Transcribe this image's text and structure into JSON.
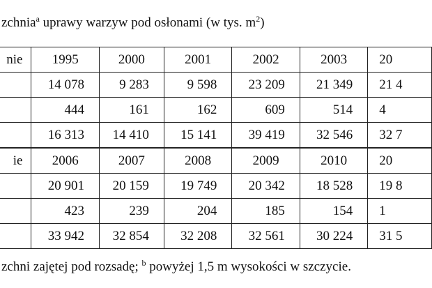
{
  "title": {
    "text1": "zchnia",
    "sup1": "a",
    "text2": " uprawy warzyw pod osłonami (w tys. m",
    "sup2": "2",
    "text3": ")"
  },
  "table": {
    "rows": [
      [
        "nie",
        "1995",
        "2000",
        "2001",
        "2002",
        "2003",
        "20"
      ],
      [
        "",
        "14 078",
        "9 283",
        "9 598",
        "23 209",
        "21 349",
        "21 4"
      ],
      [
        "",
        "444",
        "161",
        "162",
        "609",
        "514",
        "4"
      ],
      [
        "",
        "16 313",
        "14 410",
        "15 141",
        "39 419",
        "32 546",
        "32 7"
      ],
      [
        "ie",
        "2006",
        "2007",
        "2008",
        "2009",
        "2010",
        "20"
      ],
      [
        "",
        "20 901",
        "20 159",
        "19 749",
        "20 342",
        "18 528",
        "19 8"
      ],
      [
        "",
        "423",
        "239",
        "204",
        "185",
        "154",
        "1"
      ],
      [
        "",
        "33 942",
        "32 854",
        "32 208",
        "32 561",
        "30 224",
        "31 5"
      ]
    ]
  },
  "footnote": {
    "text1": "zchni zajętej pod rozsadę; ",
    "sup1": "b",
    "text2": " powyżej 1,5 m wysokości w szczycie."
  }
}
